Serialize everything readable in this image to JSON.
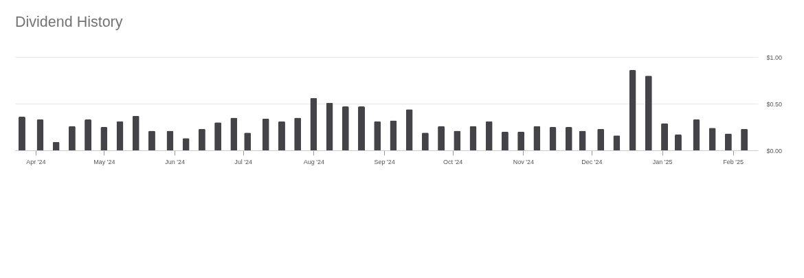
{
  "chart_data": {
    "type": "bar",
    "title": "Dividend History",
    "x": [
      "2024-03-26",
      "2024-04-03",
      "2024-04-10",
      "2024-04-17",
      "2024-04-24",
      "2024-05-01",
      "2024-05-08",
      "2024-05-15",
      "2024-05-22",
      "2024-05-30",
      "2024-06-06",
      "2024-06-13",
      "2024-06-20",
      "2024-06-27",
      "2024-07-03",
      "2024-07-11",
      "2024-07-18",
      "2024-07-25",
      "2024-08-01",
      "2024-08-08",
      "2024-08-15",
      "2024-08-22",
      "2024-08-29",
      "2024-09-05",
      "2024-09-12",
      "2024-09-19",
      "2024-09-26",
      "2024-10-03",
      "2024-10-10",
      "2024-10-17",
      "2024-10-24",
      "2024-10-31",
      "2024-11-07",
      "2024-11-14",
      "2024-11-21",
      "2024-11-27",
      "2024-12-05",
      "2024-12-12",
      "2024-12-19",
      "2024-12-26",
      "2025-01-02",
      "2025-01-08",
      "2025-01-16",
      "2025-01-23",
      "2025-01-30",
      "2025-02-06"
    ],
    "values": [
      0.36,
      0.33,
      0.09,
      0.26,
      0.33,
      0.25,
      0.31,
      0.37,
      0.21,
      0.21,
      0.13,
      0.23,
      0.3,
      0.35,
      0.19,
      0.34,
      0.31,
      0.35,
      0.56,
      0.51,
      0.47,
      0.47,
      0.31,
      0.32,
      0.44,
      0.19,
      0.26,
      0.21,
      0.26,
      0.31,
      0.2,
      0.2,
      0.26,
      0.25,
      0.25,
      0.21,
      0.23,
      0.16,
      0.86,
      0.8,
      0.29,
      0.17,
      0.33,
      0.24,
      0.18,
      0.23
    ],
    "color": "#444347",
    "xlim": [
      "2024-03-23",
      "2025-02-12"
    ],
    "xticks": [
      {
        "value": "2024-04-01",
        "label": "Apr '24"
      },
      {
        "value": "2024-05-01",
        "label": "May '24"
      },
      {
        "value": "2024-06-01",
        "label": "Jun '24"
      },
      {
        "value": "2024-07-01",
        "label": "Jul '24"
      },
      {
        "value": "2024-08-01",
        "label": "Aug '24"
      },
      {
        "value": "2024-09-01",
        "label": "Sep '24"
      },
      {
        "value": "2024-10-01",
        "label": "Oct '24"
      },
      {
        "value": "2024-11-01",
        "label": "Nov '24"
      },
      {
        "value": "2024-12-01",
        "label": "Dec '24"
      },
      {
        "value": "2025-01-01",
        "label": "Jan '25"
      },
      {
        "value": "2025-02-01",
        "label": "Feb '25"
      }
    ],
    "ylim": [
      0,
      1
    ],
    "yticks": [
      {
        "value": 0,
        "label": "$0.00"
      },
      {
        "value": 0.5,
        "label": "$0.50"
      },
      {
        "value": 1,
        "label": "$1.00"
      }
    ],
    "grid": "y"
  }
}
